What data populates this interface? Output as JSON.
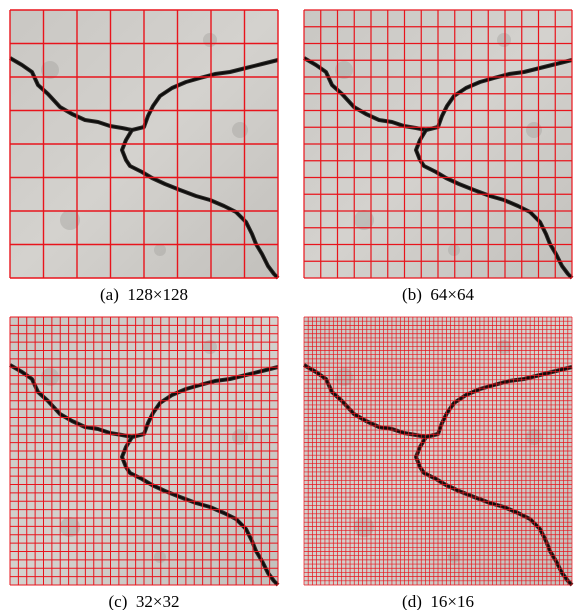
{
  "panels": [
    {
      "caption": "(a)  128×128"
    },
    {
      "caption": "(b)  64×64"
    },
    {
      "caption": "(c)  32×32"
    },
    {
      "caption": "(d)  16×16"
    }
  ]
}
